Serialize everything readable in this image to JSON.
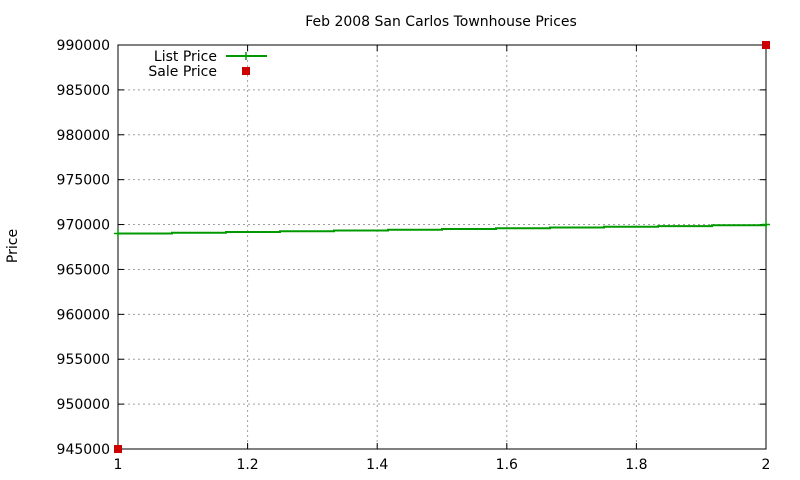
{
  "chart_data": {
    "type": "line",
    "title": "Feb 2008 San Carlos Townhouse Prices",
    "xlabel": "",
    "ylabel": "Price",
    "xlim": [
      1,
      2
    ],
    "ylim": [
      945000,
      990000
    ],
    "xticks": [
      1,
      1.2,
      1.4,
      1.6,
      1.8,
      2
    ],
    "xtick_labels": [
      "1",
      "1.2",
      "1.4",
      "1.6",
      "1.8",
      "2"
    ],
    "yticks": [
      945000,
      950000,
      955000,
      960000,
      965000,
      970000,
      975000,
      980000,
      985000,
      990000
    ],
    "ytick_labels": [
      "945000",
      "950000",
      "955000",
      "960000",
      "965000",
      "970000",
      "975000",
      "980000",
      "985000",
      "990000"
    ],
    "grid": true,
    "legend_position": "top-left",
    "series": [
      {
        "name": "List Price",
        "style": "steps",
        "color": "#009900",
        "points": [
          [
            1,
            969000
          ],
          [
            2,
            970000
          ]
        ]
      },
      {
        "name": "Sale Price",
        "style": "points",
        "color": "#cc0000",
        "points": [
          [
            1,
            945000
          ],
          [
            2,
            990000
          ]
        ]
      }
    ]
  }
}
